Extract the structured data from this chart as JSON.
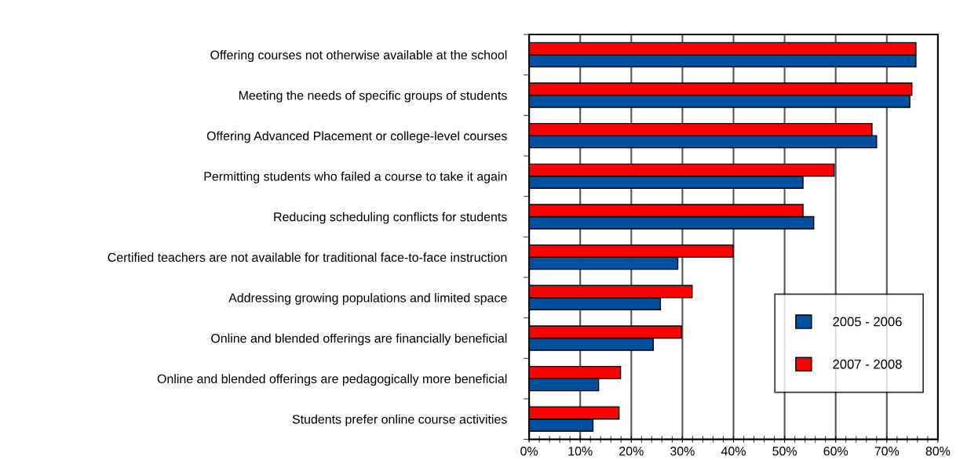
{
  "chart_data": {
    "type": "bar",
    "orientation": "horizontal",
    "categories": [
      "Offering courses not otherwise available at the school",
      "Meeting the needs of specific groups of students",
      "Offering Advanced Placement or college-level courses",
      "Permitting students who failed a course to take it again",
      "Reducing scheduling conflicts for students",
      "Certified teachers are not available for traditional face-to-face instruction",
      "Addressing growing populations and limited space",
      "Online and blended offerings are financially beneficial",
      "Online and blended offerings are pedagogically more beneficial",
      "Students prefer online course activities"
    ],
    "series": [
      {
        "name": "2005 - 2006",
        "color": "#0050a0",
        "values": [
          75.7,
          74.5,
          68.0,
          53.6,
          55.7,
          29.1,
          25.7,
          24.3,
          13.6,
          12.5
        ]
      },
      {
        "name": "2007 - 2008",
        "color": "#ff0000",
        "values": [
          75.7,
          74.9,
          67.1,
          59.7,
          53.6,
          39.9,
          31.9,
          29.8,
          17.9,
          17.6
        ]
      }
    ],
    "xlim": [
      0,
      80
    ],
    "xticks": [
      {
        "value": 0,
        "label": "0%"
      },
      {
        "value": 10,
        "label": "10%"
      },
      {
        "value": 20,
        "label": "20%"
      },
      {
        "value": 30,
        "label": "30%"
      },
      {
        "value": 40,
        "label": "40%"
      },
      {
        "value": 50,
        "label": "50%"
      },
      {
        "value": 60,
        "label": "60%"
      },
      {
        "value": 70,
        "label": "70%"
      },
      {
        "value": 80,
        "label": "80%"
      }
    ],
    "grid": "x",
    "legend": "bottom right"
  }
}
